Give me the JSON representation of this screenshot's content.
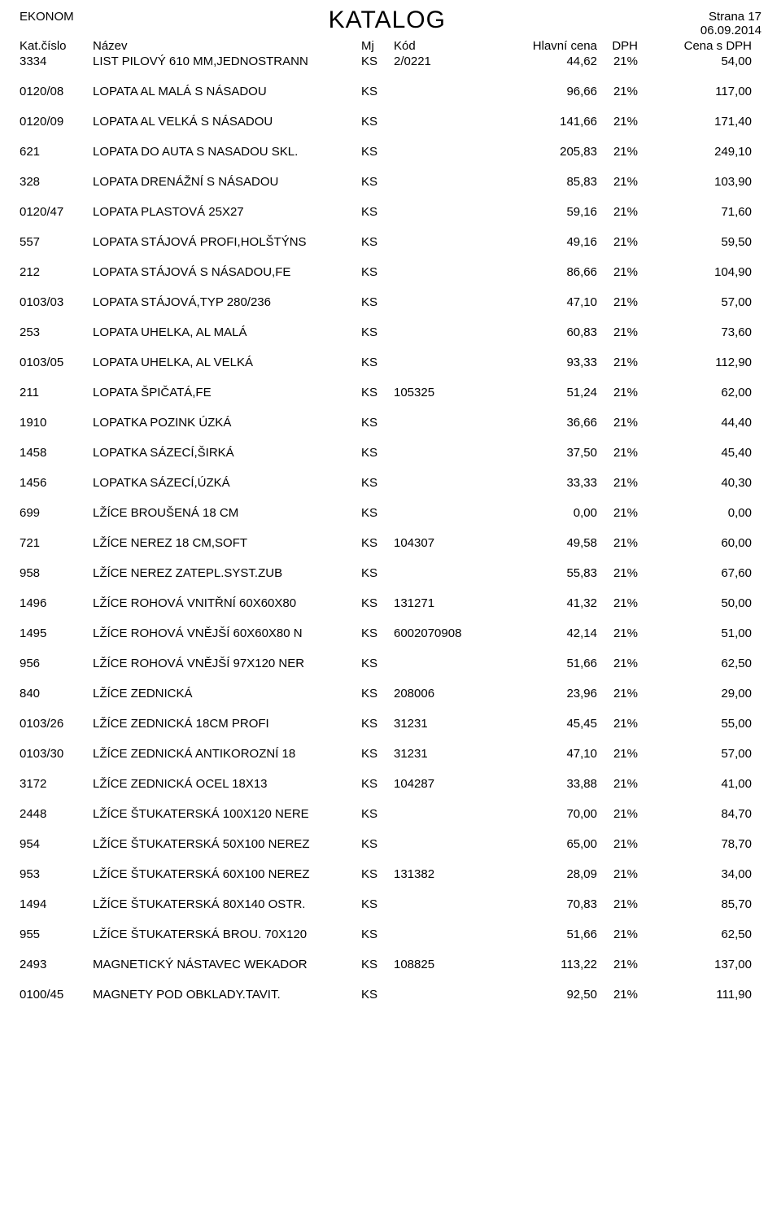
{
  "header": {
    "app_name": "EKONOM",
    "title": "KATALOG",
    "page_label": "Strana 17",
    "date": "06.09.2014"
  },
  "columns": {
    "kat": "Kat.číslo",
    "naz": "Název",
    "mj": "Mj",
    "kod": "Kód",
    "cena": "Hlavní cena",
    "dph": "DPH",
    "sdph": "Cena s DPH"
  },
  "rows": [
    {
      "kat": "3334",
      "naz": "LIST PILOVÝ 610 MM,JEDNOSTRANN",
      "mj": "KS",
      "kod": "2/0221",
      "cena": "44,62",
      "dph": "21%",
      "sdph": "54,00"
    },
    {
      "kat": "0120/08",
      "naz": "LOPATA AL MALÁ S NÁSADOU",
      "mj": "KS",
      "kod": "",
      "cena": "96,66",
      "dph": "21%",
      "sdph": "117,00"
    },
    {
      "kat": "0120/09",
      "naz": "LOPATA AL VELKÁ S NÁSADOU",
      "mj": "KS",
      "kod": "",
      "cena": "141,66",
      "dph": "21%",
      "sdph": "171,40"
    },
    {
      "kat": "621",
      "naz": "LOPATA DO AUTA S NASADOU SKL.",
      "mj": "KS",
      "kod": "",
      "cena": "205,83",
      "dph": "21%",
      "sdph": "249,10"
    },
    {
      "kat": "328",
      "naz": "LOPATA DRENÁŽNÍ S NÁSADOU",
      "mj": "KS",
      "kod": "",
      "cena": "85,83",
      "dph": "21%",
      "sdph": "103,90"
    },
    {
      "kat": "0120/47",
      "naz": "LOPATA PLASTOVÁ 25X27",
      "mj": "KS",
      "kod": "",
      "cena": "59,16",
      "dph": "21%",
      "sdph": "71,60"
    },
    {
      "kat": "557",
      "naz": "LOPATA STÁJOVÁ PROFI,HOLŠTÝNS",
      "mj": "KS",
      "kod": "",
      "cena": "49,16",
      "dph": "21%",
      "sdph": "59,50"
    },
    {
      "kat": "212",
      "naz": "LOPATA STÁJOVÁ S NÁSADOU,FE",
      "mj": "KS",
      "kod": "",
      "cena": "86,66",
      "dph": "21%",
      "sdph": "104,90"
    },
    {
      "kat": "0103/03",
      "naz": "LOPATA STÁJOVÁ,TYP 280/236",
      "mj": "KS",
      "kod": "",
      "cena": "47,10",
      "dph": "21%",
      "sdph": "57,00"
    },
    {
      "kat": "253",
      "naz": "LOPATA UHELKA, AL MALÁ",
      "mj": "KS",
      "kod": "",
      "cena": "60,83",
      "dph": "21%",
      "sdph": "73,60"
    },
    {
      "kat": "0103/05",
      "naz": "LOPATA UHELKA, AL VELKÁ",
      "mj": "KS",
      "kod": "",
      "cena": "93,33",
      "dph": "21%",
      "sdph": "112,90"
    },
    {
      "kat": "211",
      "naz": "LOPATA ŠPIČATÁ,FE",
      "mj": "KS",
      "kod": "105325",
      "cena": "51,24",
      "dph": "21%",
      "sdph": "62,00"
    },
    {
      "kat": "1910",
      "naz": "LOPATKA POZINK ÚZKÁ",
      "mj": "KS",
      "kod": "",
      "cena": "36,66",
      "dph": "21%",
      "sdph": "44,40"
    },
    {
      "kat": "1458",
      "naz": "LOPATKA SÁZECÍ,ŠIRKÁ",
      "mj": "KS",
      "kod": "",
      "cena": "37,50",
      "dph": "21%",
      "sdph": "45,40"
    },
    {
      "kat": "1456",
      "naz": "LOPATKA SÁZECÍ,ÚZKÁ",
      "mj": "KS",
      "kod": "",
      "cena": "33,33",
      "dph": "21%",
      "sdph": "40,30"
    },
    {
      "kat": "699",
      "naz": "LŽÍCE BROUŠENÁ 18 CM",
      "mj": "KS",
      "kod": "",
      "cena": "0,00",
      "dph": "21%",
      "sdph": "0,00"
    },
    {
      "kat": "721",
      "naz": "LŽÍCE NEREZ 18 CM,SOFT",
      "mj": "KS",
      "kod": "104307",
      "cena": "49,58",
      "dph": "21%",
      "sdph": "60,00"
    },
    {
      "kat": "958",
      "naz": "LŽÍCE NEREZ ZATEPL.SYST.ZUB",
      "mj": "KS",
      "kod": "",
      "cena": "55,83",
      "dph": "21%",
      "sdph": "67,60"
    },
    {
      "kat": "1496",
      "naz": "LŽÍCE ROHOVÁ VNITŘNÍ 60X60X80",
      "mj": "KS",
      "kod": "131271",
      "cena": "41,32",
      "dph": "21%",
      "sdph": "50,00"
    },
    {
      "kat": "1495",
      "naz": "LŽÍCE ROHOVÁ VNĚJŠÍ 60X60X80 N",
      "mj": "KS",
      "kod": "6002070908",
      "cena": "42,14",
      "dph": "21%",
      "sdph": "51,00"
    },
    {
      "kat": "956",
      "naz": "LŽÍCE ROHOVÁ VNĚJŠÍ 97X120 NER",
      "mj": "KS",
      "kod": "",
      "cena": "51,66",
      "dph": "21%",
      "sdph": "62,50"
    },
    {
      "kat": "840",
      "naz": "LŽÍCE ZEDNICKÁ",
      "mj": "KS",
      "kod": "208006",
      "cena": "23,96",
      "dph": "21%",
      "sdph": "29,00"
    },
    {
      "kat": "0103/26",
      "naz": "LŽÍCE ZEDNICKÁ 18CM PROFI",
      "mj": "KS",
      "kod": "31231",
      "cena": "45,45",
      "dph": "21%",
      "sdph": "55,00"
    },
    {
      "kat": "0103/30",
      "naz": "LŽÍCE ZEDNICKÁ ANTIKOROZNÍ 18",
      "mj": "KS",
      "kod": "31231",
      "cena": "47,10",
      "dph": "21%",
      "sdph": "57,00"
    },
    {
      "kat": "3172",
      "naz": "LŽÍCE ZEDNICKÁ OCEL 18X13",
      "mj": "KS",
      "kod": "104287",
      "cena": "33,88",
      "dph": "21%",
      "sdph": "41,00"
    },
    {
      "kat": "2448",
      "naz": "LŽÍCE ŠTUKATERSKÁ 100X120 NERE",
      "mj": "KS",
      "kod": "",
      "cena": "70,00",
      "dph": "21%",
      "sdph": "84,70"
    },
    {
      "kat": "954",
      "naz": "LŽÍCE ŠTUKATERSKÁ 50X100 NEREZ",
      "mj": "KS",
      "kod": "",
      "cena": "65,00",
      "dph": "21%",
      "sdph": "78,70"
    },
    {
      "kat": "953",
      "naz": "LŽÍCE ŠTUKATERSKÁ 60X100 NEREZ",
      "mj": "KS",
      "kod": "131382",
      "cena": "28,09",
      "dph": "21%",
      "sdph": "34,00"
    },
    {
      "kat": "1494",
      "naz": "LŽÍCE ŠTUKATERSKÁ 80X140 OSTR.",
      "mj": "KS",
      "kod": "",
      "cena": "70,83",
      "dph": "21%",
      "sdph": "85,70"
    },
    {
      "kat": "955",
      "naz": "LŽÍCE ŠTUKATERSKÁ BROU. 70X120",
      "mj": "KS",
      "kod": "",
      "cena": "51,66",
      "dph": "21%",
      "sdph": "62,50"
    },
    {
      "kat": "2493",
      "naz": "MAGNETICKÝ NÁSTAVEC WEKADOR",
      "mj": "KS",
      "kod": "108825",
      "cena": "113,22",
      "dph": "21%",
      "sdph": "137,00"
    },
    {
      "kat": "0100/45",
      "naz": "MAGNETY POD OBKLADY.TAVIT.",
      "mj": "KS",
      "kod": "",
      "cena": "92,50",
      "dph": "21%",
      "sdph": "111,90"
    }
  ]
}
